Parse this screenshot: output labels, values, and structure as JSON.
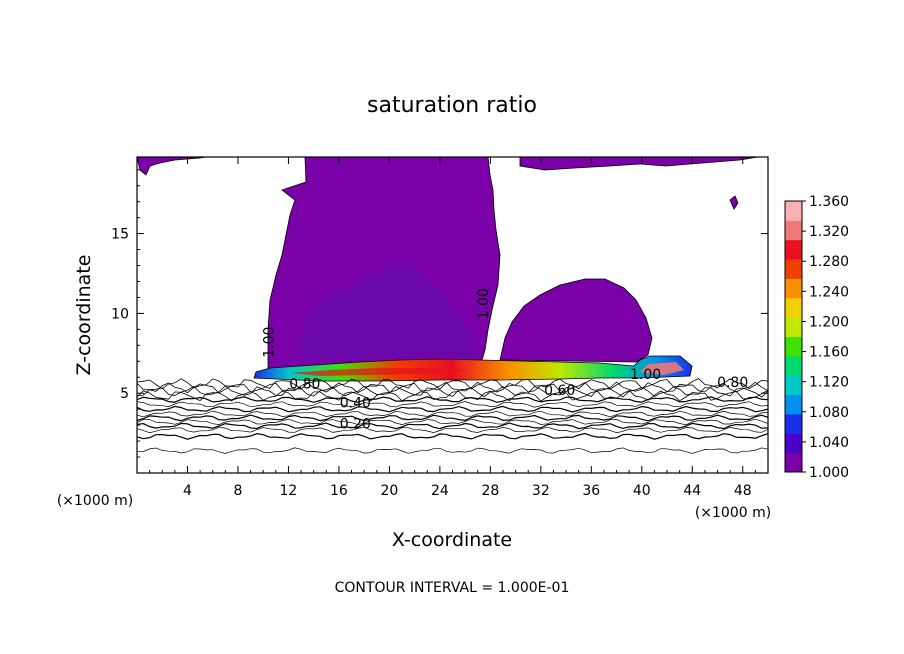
{
  "chart_data": {
    "type": "contour",
    "title": "saturation ratio",
    "xlabel": "X-coordinate",
    "ylabel": "Z-coordinate",
    "x_unit_label": "(×1000 m)",
    "x_unit_label_right": "(×1000 m)",
    "xlim": [
      0,
      50
    ],
    "ylim": [
      0,
      19.8
    ],
    "x_ticks": [
      4,
      8,
      12,
      16,
      20,
      24,
      28,
      32,
      36,
      40,
      44,
      48
    ],
    "y_ticks": [
      5,
      10,
      15
    ],
    "footer": "CONTOUR INTERVAL = 1.000E-01",
    "contour_interval": 0.1,
    "contour_labels": [
      {
        "text": "1.00",
        "x": 10.8,
        "z": 8.2,
        "rotate": -90
      },
      {
        "text": "1.00",
        "x": 27.8,
        "z": 10.6,
        "rotate": -90
      },
      {
        "text": "1.00",
        "x": 40.3,
        "z": 5.9,
        "rotate": 0
      },
      {
        "text": "0.80",
        "x": 13.3,
        "z": 5.3,
        "rotate": 0
      },
      {
        "text": "0.80",
        "x": 47.2,
        "z": 5.4,
        "rotate": 0
      },
      {
        "text": "0.60",
        "x": 33.5,
        "z": 4.9,
        "rotate": 0
      },
      {
        "text": "0.40",
        "x": 17.3,
        "z": 4.1,
        "rotate": 0
      },
      {
        "text": "0.20",
        "x": 17.3,
        "z": 2.8,
        "rotate": 0
      }
    ],
    "colorbar": {
      "min": 1.0,
      "max": 1.36,
      "labels": [
        "1.360",
        "1.320",
        "1.280",
        "1.240",
        "1.200",
        "1.160",
        "1.120",
        "1.080",
        "1.040",
        "1.000"
      ],
      "colors": [
        "#7a00a8",
        "#4a00c8",
        "#1a30e8",
        "#0090f0",
        "#00c8c8",
        "#00d870",
        "#40e000",
        "#c0e800",
        "#f0d000",
        "#f89000",
        "#f04000",
        "#e81020",
        "#f07878",
        "#f8b0b0"
      ]
    },
    "unsaturated_lines_z": [
      4.6,
      4.3,
      4.0,
      3.7,
      3.45,
      3.2,
      2.95,
      2.7,
      2.3,
      1.4
    ],
    "supersaturated_regions": [
      {
        "name": "left tower",
        "x": [
          10.5,
          28.5
        ],
        "z": [
          6.0,
          19.8
        ]
      },
      {
        "name": "right cell",
        "x": [
          27.5,
          40.2
        ],
        "z": [
          6.8,
          12.2
        ]
      },
      {
        "name": "top right cap",
        "x": [
          30.5,
          48.5
        ],
        "z": [
          18.0,
          19.8
        ]
      },
      {
        "name": "top left cap",
        "x": [
          0,
          5.5
        ],
        "z": [
          18.8,
          19.8
        ]
      }
    ],
    "peak_layer": {
      "x": [
        9.5,
        45.0
      ],
      "z": [
        5.9,
        7.3
      ],
      "max_value": 1.36
    }
  }
}
